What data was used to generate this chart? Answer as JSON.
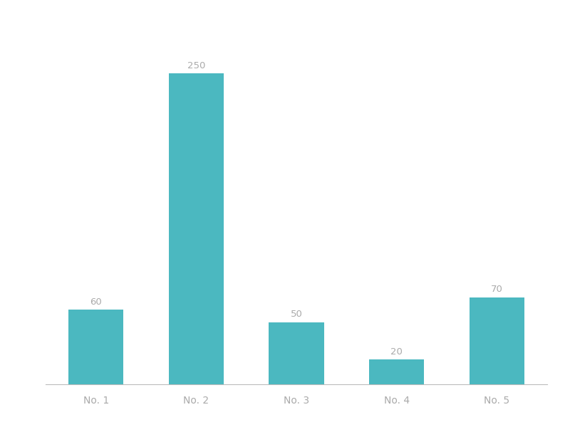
{
  "categories": [
    "No. 1",
    "No. 2",
    "No. 3",
    "No. 4",
    "No. 5"
  ],
  "values": [
    60,
    250,
    50,
    20,
    70
  ],
  "bar_color": "#4BB8C0",
  "label_color": "#aaaaaa",
  "label_fontsize": 9.5,
  "tick_label_fontsize": 10,
  "tick_label_color": "#aaaaaa",
  "background_color": "#ffffff",
  "ylim": [
    0,
    285
  ],
  "bar_width": 0.55,
  "spine_color": "#bbbbbb"
}
